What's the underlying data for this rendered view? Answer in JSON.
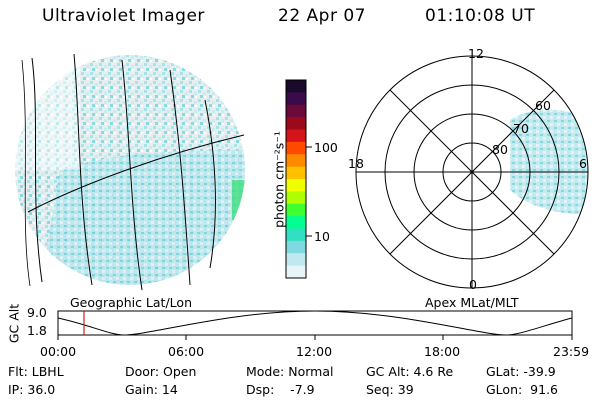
{
  "header": {
    "instrument": "Ultraviolet Imager",
    "date": "22 Apr 07",
    "time": "01:10:08 UT"
  },
  "colorbar": {
    "label": "photon cm⁻²s⁻¹",
    "ticks": [
      "100",
      "10"
    ],
    "colors": [
      "#1a0a2a",
      "#3a0a4a",
      "#6a0a3a",
      "#9a0a1a",
      "#d4141a",
      "#ff4a00",
      "#ff8a00",
      "#ffc000",
      "#f0ff00",
      "#b0ff00",
      "#40ff30",
      "#00ff90",
      "#30e0c0",
      "#80d8e0",
      "#c0e8f0",
      "#e8f4f8"
    ]
  },
  "left_panel": {
    "label": "Geographic Lat/Lon"
  },
  "right_panel": {
    "label": "Apex MLat/MLT",
    "mlt_labels": [
      "12",
      "18",
      "6",
      "0"
    ],
    "mlat_labels": [
      "60",
      "70",
      "80"
    ]
  },
  "altitude_plot": {
    "ylabel": "GC Alt",
    "ymax": "9.0",
    "ymin": "1.8",
    "xticks": [
      "00:00",
      "06:00",
      "12:00",
      "18:00",
      "23:59"
    ],
    "marker_color": "#d02020"
  },
  "info": {
    "filter": "Flt: LBHL",
    "ip": "IP: 36.0",
    "door": "Door: Open",
    "gain": "Gain: 14",
    "mode": "Mode: Normal",
    "dsp": "Dsp:    -7.9",
    "gc_alt": "GC Alt: 4.6 Re",
    "seq": "Seq: 39",
    "glat": "GLat: -39.9",
    "glon": "GLon:  91.6"
  }
}
